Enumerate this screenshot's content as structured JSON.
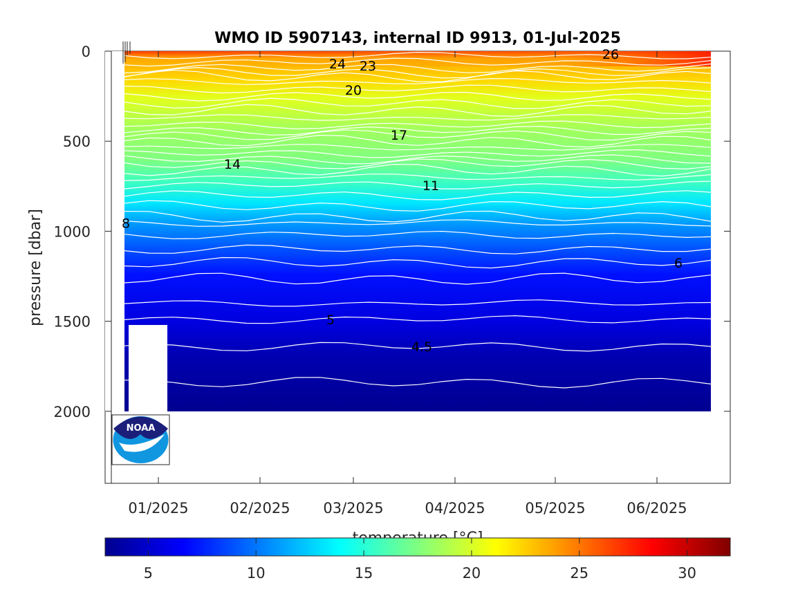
{
  "chart_data": {
    "type": "heatmap",
    "title": "WMO ID 5907143, internal ID 9913, 01-Jul-2025",
    "ylabel": "pressure [dbar]",
    "xlabel": "",
    "y_axis": {
      "reversed": true,
      "ticks": [
        0,
        500,
        1000,
        1500,
        2000
      ],
      "ylim": [
        0,
        2400
      ]
    },
    "x_axis": {
      "ticks": [
        "01/2025",
        "02/2025",
        "03/2025",
        "04/2025",
        "05/2025",
        "06/2025"
      ]
    },
    "data_extent": {
      "pressure_max": 2000
    },
    "contours": [
      {
        "label": "26",
        "pressure": 15
      },
      {
        "label": "24",
        "pressure": 70
      },
      {
        "label": "23",
        "pressure": 80
      },
      {
        "label": "20",
        "pressure": 215
      },
      {
        "label": "17",
        "pressure": 465
      },
      {
        "label": "14",
        "pressure": 625
      },
      {
        "label": "11",
        "pressure": 745
      },
      {
        "label": "8",
        "pressure": 955
      },
      {
        "label": "6",
        "pressure": 1175
      },
      {
        "label": "5",
        "pressure": 1490
      },
      {
        "label": "4.5",
        "pressure": 1640
      }
    ],
    "colorbar": {
      "label": "temperature [°C]",
      "range": [
        3,
        32
      ],
      "ticks": [
        5,
        10,
        15,
        20,
        25,
        30
      ],
      "colormap": "jet"
    }
  },
  "logo": {
    "text": "NOAA"
  }
}
